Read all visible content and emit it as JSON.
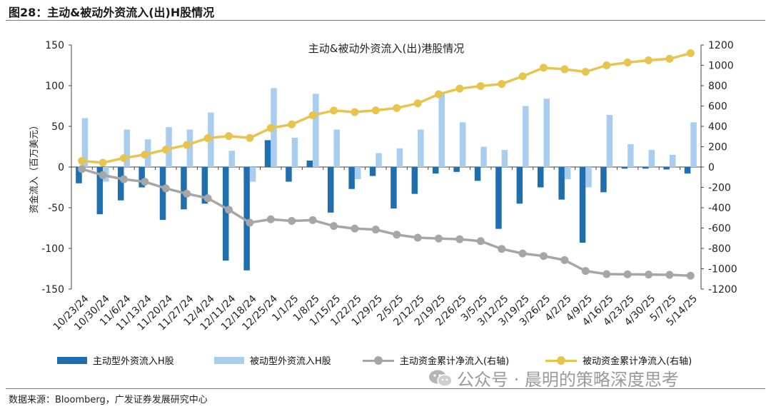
{
  "figure_title": "图28：主动&被动外资流入(出)H股情况",
  "source": "数据来源：Bloomberg，广发证券发展研究中心",
  "watermark": "公众号 · 晨明的策略深度思考",
  "watermark_icon": "wechat-icon",
  "colors": {
    "active_bar": "#1f6ead",
    "passive_bar": "#a9cdef",
    "active_cum": "#a6a6a6",
    "passive_cum": "#e6c44d"
  },
  "legend": {
    "active_bar": "主动型外资流入H股",
    "passive_bar": "被动型外资流入H股",
    "active_cum": "主动资金累计净流入(右轴)",
    "passive_cum": "被动资金累计净流入(右轴)"
  },
  "chart_data": {
    "type": "bar",
    "title": "主动&被动外资流入(出)港股情况",
    "ylabel": "资金流入（百万美元）",
    "y2label": "",
    "ylim": [
      -150,
      150
    ],
    "y_ticks": [
      -150,
      -100,
      -50,
      0,
      50,
      100,
      150
    ],
    "y2lim": [
      -1200,
      1200
    ],
    "y2_ticks": [
      -1200,
      -1000,
      -800,
      -600,
      -400,
      -200,
      0,
      200,
      400,
      600,
      800,
      1000,
      1200
    ],
    "categories": [
      "10/23/24",
      "10/30/24",
      "11/6/24",
      "11/13/24",
      "11/20/24",
      "11/27/24",
      "12/4/24",
      "12/11/24",
      "12/18/24",
      "12/25/24",
      "1/1/25",
      "1/8/25",
      "1/15/25",
      "1/22/25",
      "1/29/25",
      "2/5/25",
      "2/12/25",
      "2/19/25",
      "2/26/25",
      "3/5/25",
      "3/12/25",
      "3/19/25",
      "3/26/25",
      "4/2/25",
      "4/9/25",
      "4/16/25",
      "4/23/25",
      "4/30/25",
      "5/7/25",
      "5/14/25"
    ],
    "series": [
      {
        "name": "主动型外资流入H股",
        "type": "bar",
        "axis": "left",
        "values": [
          -20,
          -58,
          -41,
          -25,
          -65,
          -52,
          -45,
          -115,
          -127,
          33,
          -18,
          8,
          -56,
          -27,
          -11,
          -51,
          -33,
          -8,
          -6,
          -17,
          -76,
          -45,
          -25,
          -40,
          -93,
          -31,
          -2,
          -2,
          -3,
          -8
        ]
      },
      {
        "name": "被动型外资流入H股",
        "type": "bar",
        "axis": "left",
        "values": [
          60,
          -18,
          46,
          34,
          49,
          46,
          67,
          20,
          -18,
          97,
          36,
          90,
          46,
          -15,
          17,
          23,
          46,
          90,
          55,
          25,
          21,
          75,
          84,
          -15,
          -25,
          64,
          28,
          21,
          15,
          55
        ]
      },
      {
        "name": "主动资金累计净流入(右轴)",
        "type": "line",
        "axis": "right",
        "values": [
          -20,
          -80,
          -120,
          -145,
          -210,
          -262,
          -307,
          -420,
          -547,
          -514,
          -530,
          -522,
          -580,
          -605,
          -615,
          -665,
          -695,
          -703,
          -710,
          -728,
          -805,
          -850,
          -875,
          -915,
          -1022,
          -1053,
          -1055,
          -1057,
          -1060,
          -1068
        ]
      },
      {
        "name": "被动资金累计净流入(右轴)",
        "type": "line",
        "axis": "right",
        "values": [
          60,
          42,
          88,
          122,
          171,
          217,
          284,
          304,
          286,
          383,
          419,
          509,
          555,
          540,
          557,
          580,
          626,
          716,
          771,
          796,
          817,
          892,
          976,
          961,
          936,
          1000,
          1028,
          1049,
          1064,
          1119
        ]
      }
    ]
  }
}
